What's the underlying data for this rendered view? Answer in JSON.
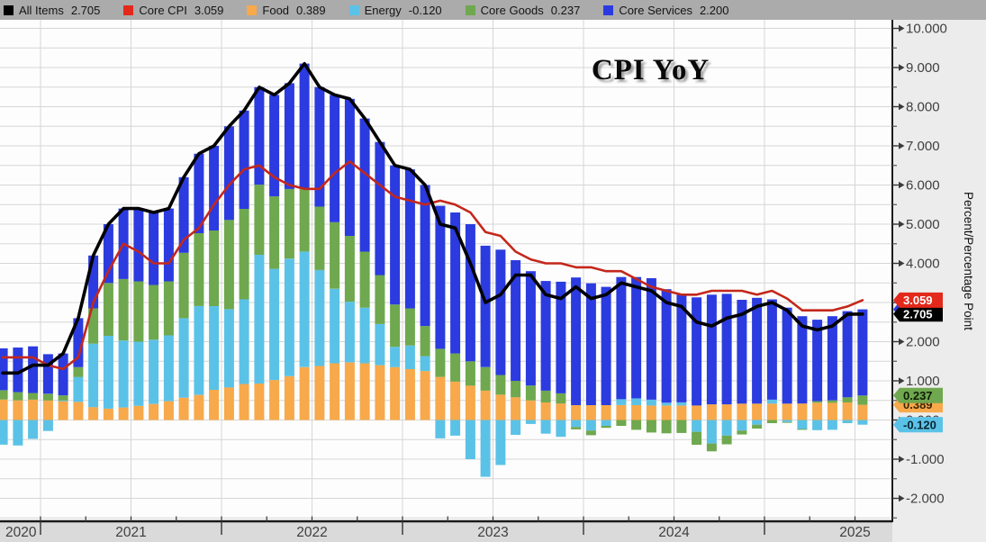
{
  "legend": {
    "items": [
      {
        "name": "All Items",
        "value": "2.705",
        "color": "#000000"
      },
      {
        "name": "Core CPI",
        "value": "3.059",
        "color": "#e3291b"
      },
      {
        "name": "Food",
        "value": "0.389",
        "color": "#f7a94b"
      },
      {
        "name": "Energy",
        "value": "-0.120",
        "color": "#5bc2e7"
      },
      {
        "name": "Core Goods",
        "value": "0.237",
        "color": "#6fa84e"
      },
      {
        "name": "Core Services",
        "value": "2.200",
        "color": "#2b3bdf"
      }
    ]
  },
  "colors": {
    "food": "#f7a94b",
    "energy": "#5bc2e7",
    "core_goods": "#6fa84e",
    "core_services": "#2b3bdf",
    "all_items": "#000000",
    "core_cpi": "#c4271b",
    "grid": "#d6d6d6",
    "plot_bg": "#fdfdfd",
    "legend_bg": "#ababab",
    "bottom_band": "#dadada",
    "right_margin": "#ececec",
    "axis": "#1a1a1a",
    "tick_text": "#3f3f3f"
  },
  "value_tags": [
    {
      "label": "2.200",
      "at": 2.826,
      "bg": "#2b3bdf",
      "fg": "#ffffff"
    },
    {
      "label": "2.705",
      "at": 2.705,
      "bg": "#000000",
      "fg": "#ffffff"
    },
    {
      "label": "3.059",
      "at": 3.059,
      "bg": "#e3291b",
      "fg": "#ffffff"
    },
    {
      "label": "0.389",
      "at": 0.389,
      "bg": "#f7a94b",
      "fg": "#3c2504"
    },
    {
      "label": "0.237",
      "at": 0.626,
      "bg": "#6fa84e",
      "fg": "#0f1c07"
    },
    {
      "label": "-0.120",
      "at": -0.12,
      "bg": "#5bc2e7",
      "fg": "#08242e"
    }
  ],
  "chart_data": {
    "type": "stacked-bar+line",
    "title": "CPI YoY",
    "ylabel": "Percent/Percentage Point",
    "ylim": [
      -2.61,
      10.22
    ],
    "grid": "on",
    "legend_position": "top",
    "months": [
      "2020-10",
      "2020-11",
      "2020-12",
      "2021-01",
      "2021-02",
      "2021-03",
      "2021-04",
      "2021-05",
      "2021-06",
      "2021-07",
      "2021-08",
      "2021-09",
      "2021-10",
      "2021-11",
      "2021-12",
      "2022-01",
      "2022-02",
      "2022-03",
      "2022-04",
      "2022-05",
      "2022-06",
      "2022-07",
      "2022-08",
      "2022-09",
      "2022-10",
      "2022-11",
      "2022-12",
      "2023-01",
      "2023-02",
      "2023-03",
      "2023-04",
      "2023-05",
      "2023-06",
      "2023-07",
      "2023-08",
      "2023-09",
      "2023-10",
      "2023-11",
      "2023-12",
      "2024-01",
      "2024-02",
      "2024-03",
      "2024-04",
      "2024-05",
      "2024-06",
      "2024-07",
      "2024-08",
      "2024-09",
      "2024-10",
      "2024-11",
      "2024-12",
      "2025-01",
      "2025-02",
      "2025-03",
      "2025-04",
      "2025-05",
      "2025-06",
      "2025-07"
    ],
    "bar_series": [
      {
        "name": "Food",
        "color_key": "food",
        "values": [
          0.52,
          0.5,
          0.52,
          0.5,
          0.48,
          0.46,
          0.33,
          0.29,
          0.32,
          0.36,
          0.41,
          0.48,
          0.57,
          0.64,
          0.77,
          0.83,
          0.92,
          0.93,
          1.02,
          1.12,
          1.35,
          1.38,
          1.45,
          1.47,
          1.45,
          1.4,
          1.35,
          1.3,
          1.25,
          1.1,
          0.98,
          0.88,
          0.75,
          0.65,
          0.58,
          0.5,
          0.45,
          0.42,
          0.38,
          0.38,
          0.38,
          0.38,
          0.38,
          0.37,
          0.37,
          0.37,
          0.37,
          0.4,
          0.4,
          0.42,
          0.42,
          0.42,
          0.42,
          0.42,
          0.44,
          0.44,
          0.45,
          0.389
        ]
      },
      {
        "name": "Energy",
        "color_key": "energy",
        "values": [
          -0.63,
          -0.65,
          -0.48,
          -0.28,
          0.02,
          0.64,
          1.62,
          1.86,
          1.71,
          1.64,
          1.64,
          1.68,
          2.03,
          2.27,
          2.14,
          2.0,
          2.16,
          3.29,
          2.84,
          3.0,
          2.95,
          2.45,
          1.9,
          1.55,
          1.42,
          1.05,
          0.52,
          0.6,
          0.38,
          -0.47,
          -0.4,
          -1.0,
          -1.45,
          -1.15,
          -0.38,
          -0.1,
          -0.35,
          -0.43,
          -0.18,
          -0.27,
          -0.15,
          0.15,
          0.17,
          0.15,
          0.07,
          0.08,
          -0.3,
          -0.6,
          -0.4,
          -0.27,
          -0.12,
          0.1,
          -0.05,
          -0.23,
          -0.26,
          -0.25,
          -0.08,
          -0.12
        ]
      },
      {
        "name": "Core Goods",
        "color_key": "core_goods",
        "values": [
          0.24,
          0.21,
          0.17,
          0.17,
          0.13,
          0.25,
          0.9,
          1.35,
          1.57,
          1.54,
          1.4,
          1.38,
          1.67,
          1.86,
          1.93,
          2.28,
          2.31,
          1.79,
          1.85,
          1.78,
          1.6,
          1.62,
          1.7,
          1.68,
          1.43,
          1.25,
          1.08,
          0.95,
          0.77,
          0.72,
          0.72,
          0.62,
          0.6,
          0.5,
          0.42,
          0.38,
          0.3,
          0.26,
          -0.06,
          -0.12,
          -0.05,
          -0.15,
          -0.25,
          -0.32,
          -0.34,
          -0.33,
          -0.33,
          -0.2,
          -0.22,
          -0.1,
          -0.1,
          -0.08,
          -0.02,
          -0.02,
          0.04,
          0.06,
          0.13,
          0.237
        ]
      },
      {
        "name": "Core Services",
        "color_key": "core_services",
        "values": [
          1.07,
          1.14,
          1.19,
          1.01,
          1.07,
          1.25,
          1.35,
          1.5,
          1.8,
          1.86,
          1.85,
          1.86,
          1.93,
          2.03,
          2.16,
          2.39,
          2.51,
          2.49,
          2.59,
          2.7,
          3.2,
          3.05,
          3.25,
          3.5,
          3.4,
          3.4,
          3.55,
          3.55,
          3.6,
          3.65,
          3.6,
          3.5,
          3.1,
          3.2,
          3.08,
          2.92,
          2.8,
          2.85,
          3.26,
          3.11,
          3.02,
          3.12,
          3.1,
          3.1,
          2.9,
          2.78,
          2.76,
          2.8,
          2.82,
          2.65,
          2.7,
          2.56,
          2.45,
          2.23,
          2.08,
          2.15,
          2.2,
          2.2
        ]
      }
    ],
    "line_series": [
      {
        "name": "Core CPI",
        "color_key": "core_cpi",
        "width": 2.6,
        "values": [
          1.6,
          1.6,
          1.6,
          1.4,
          1.3,
          1.6,
          3.0,
          3.8,
          4.5,
          4.3,
          4.0,
          4.0,
          4.6,
          4.9,
          5.5,
          6.0,
          6.4,
          6.5,
          6.2,
          6.0,
          5.9,
          5.9,
          6.3,
          6.6,
          6.3,
          6.0,
          5.7,
          5.6,
          5.5,
          5.6,
          5.5,
          5.3,
          4.8,
          4.7,
          4.3,
          4.1,
          4.0,
          4.0,
          3.9,
          3.9,
          3.8,
          3.8,
          3.6,
          3.4,
          3.3,
          3.2,
          3.2,
          3.3,
          3.3,
          3.3,
          3.2,
          3.3,
          3.1,
          2.8,
          2.8,
          2.8,
          2.9,
          3.059
        ]
      },
      {
        "name": "All Items",
        "color_key": "all_items",
        "width": 3.6,
        "values": [
          1.2,
          1.2,
          1.4,
          1.4,
          1.7,
          2.6,
          4.2,
          5.0,
          5.4,
          5.4,
          5.3,
          5.4,
          6.2,
          6.8,
          7.0,
          7.5,
          7.9,
          8.5,
          8.3,
          8.6,
          9.1,
          8.5,
          8.3,
          8.2,
          7.7,
          7.1,
          6.5,
          6.4,
          6.0,
          5.0,
          4.9,
          4.0,
          3.0,
          3.2,
          3.7,
          3.7,
          3.2,
          3.1,
          3.4,
          3.1,
          3.2,
          3.5,
          3.4,
          3.3,
          3.0,
          2.9,
          2.5,
          2.4,
          2.6,
          2.7,
          2.9,
          3.0,
          2.8,
          2.4,
          2.3,
          2.4,
          2.7,
          2.705
        ]
      }
    ],
    "y_ticks": {
      "values": [
        10,
        9,
        8,
        7,
        6,
        5,
        4,
        3,
        2,
        1,
        0,
        -1,
        -2
      ],
      "labels": [
        "10.000",
        "9.000",
        "8.000",
        "7.000",
        "6.000",
        "5.000",
        "4.000",
        "3.000",
        "2.000",
        "1.000",
        "0.000",
        "-1.000",
        "-2.000"
      ]
    },
    "x_years": [
      "2020",
      "2021",
      "2022",
      "2023",
      "2024",
      "2025"
    ]
  }
}
